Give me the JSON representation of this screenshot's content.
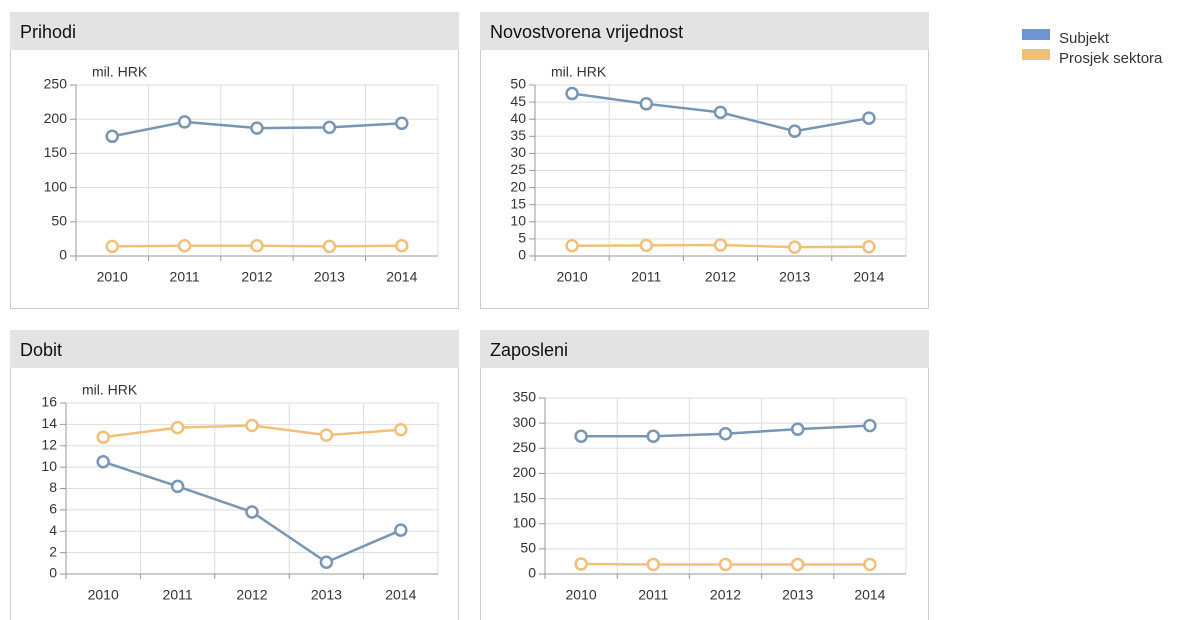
{
  "chart_data": [
    {
      "type": "line",
      "title": "Prihodi",
      "y_label": "mil. HRK",
      "categories": [
        "2010",
        "2011",
        "2012",
        "2013",
        "2014"
      ],
      "series": [
        {
          "color": "#7896b4",
          "values": [
            175,
            196,
            187,
            188,
            194
          ]
        },
        {
          "color": "#f0c07a",
          "values": [
            14,
            15,
            15,
            14,
            15
          ]
        }
      ],
      "ylim": [
        0,
        250
      ],
      "yticks": [
        0,
        50,
        100,
        150,
        200,
        250
      ],
      "grid": true
    },
    {
      "type": "line",
      "title": "Novostvorena vrijednost",
      "y_label": "mil. HRK",
      "categories": [
        "2010",
        "2011",
        "2012",
        "2013",
        "2014"
      ],
      "series": [
        {
          "color": "#7896b4",
          "values": [
            47.5,
            44.5,
            42,
            36.5,
            40.3
          ]
        },
        {
          "color": "#f0c07a",
          "values": [
            3,
            3.1,
            3.2,
            2.6,
            2.7
          ]
        }
      ],
      "ylim": [
        0,
        50
      ],
      "yticks": [
        0,
        5,
        10,
        15,
        20,
        25,
        30,
        35,
        40,
        45,
        50
      ],
      "grid": true
    },
    {
      "type": "line",
      "title": "Dobit",
      "y_label": "mil. HRK",
      "categories": [
        "2010",
        "2011",
        "2012",
        "2013",
        "2014"
      ],
      "series": [
        {
          "color": "#7896b4",
          "values": [
            10.5,
            8.2,
            5.8,
            1.1,
            4.1
          ]
        },
        {
          "color": "#f0c07a",
          "values": [
            12.8,
            13.7,
            13.9,
            13.0,
            13.5
          ]
        }
      ],
      "ylim": [
        0,
        16
      ],
      "yticks": [
        0,
        2,
        4,
        6,
        8,
        10,
        12,
        14,
        16
      ],
      "grid": true
    },
    {
      "type": "line",
      "title": "Zaposleni",
      "categories": [
        "2010",
        "2011",
        "2012",
        "2013",
        "2014"
      ],
      "series": [
        {
          "color": "#7896b4",
          "values": [
            274,
            274,
            279,
            288,
            295
          ]
        },
        {
          "color": "#f0c07a",
          "values": [
            20,
            19,
            19,
            19,
            19
          ]
        }
      ],
      "ylim": [
        0,
        350
      ],
      "yticks": [
        0,
        50,
        100,
        150,
        200,
        250,
        300,
        350
      ],
      "grid": true
    }
  ],
  "legend": [
    {
      "name": "Subjekt",
      "color": "#7094d4"
    },
    {
      "name": "Prosjek sektora",
      "color": "#f0c07a"
    }
  ]
}
